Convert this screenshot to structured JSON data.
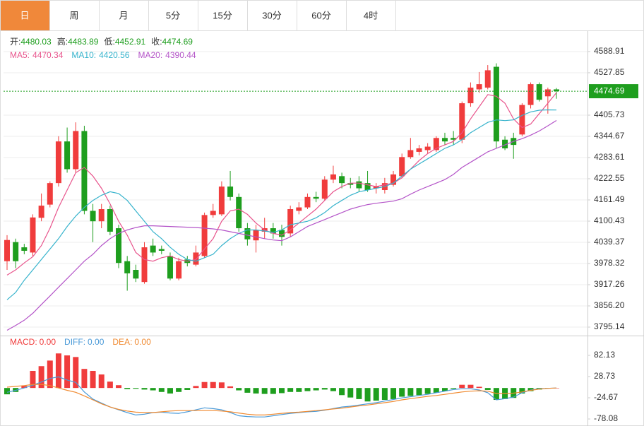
{
  "tabs": [
    "日",
    "周",
    "月",
    "5分",
    "15分",
    "30分",
    "60分",
    "4时"
  ],
  "active_tab": 0,
  "chart_data": [
    {
      "type": "candlestick",
      "up_color": "#f03c3c",
      "down_color": "#1e9e1e",
      "grid": true,
      "ohlc_labels": [
        "开:",
        "高:",
        "低:",
        "收:"
      ],
      "ohlc_value_color": "#1e9e1e",
      "ylim": [
        3770.75,
        4645.82
      ],
      "yticks": [
        4588.91,
        4527.85,
        4405.73,
        4344.67,
        4283.61,
        4222.55,
        4161.49,
        4100.43,
        4039.37,
        3978.32,
        3917.26,
        {
          "value": 3856.2,
          "label": "3856.20"
        },
        3795.14
      ],
      "open": [
        3985,
        4040,
        4025,
        4010,
        4110,
        4148,
        4210,
        4330,
        4250,
        4360,
        4130,
        4100,
        4135,
        4080,
        3985,
        3960,
        3925,
        4030,
        4020,
        4000,
        3935,
        3990,
        3975,
        4000,
        4118,
        4120,
        4200,
        4170,
        4080,
        4045,
        4070,
        4080,
        4075,
        4065,
        4130,
        4140,
        4170,
        4165,
        4220,
        4230,
        4210,
        4215,
        4210,
        4195,
        4190,
        4205,
        4230,
        4285,
        4300,
        4305,
        4305,
        4340,
        4340,
        4335,
        4440,
        4480,
        4485,
        4545,
        4335,
        4340,
        4350,
        4435,
        4495,
        4460,
        4480.03
      ],
      "high": [
        4060,
        4050,
        4035,
        4120,
        4180,
        4215,
        4345,
        4370,
        4385,
        4375,
        4150,
        4150,
        4145,
        4090,
        4000,
        3975,
        4040,
        4050,
        4030,
        4010,
        3995,
        4000,
        4030,
        4125,
        4150,
        4215,
        4245,
        4180,
        4095,
        4090,
        4110,
        4095,
        4090,
        4145,
        4155,
        4180,
        4185,
        4230,
        4260,
        4240,
        4225,
        4230,
        4245,
        4210,
        4225,
        4245,
        4295,
        4340,
        4320,
        4325,
        4345,
        4355,
        4360,
        4445,
        4500,
        4530,
        4550,
        4555,
        4345,
        4355,
        4440,
        4500,
        4500,
        4485,
        4483.89
      ],
      "low": [
        3960,
        3965,
        4005,
        4000,
        4100,
        4140,
        4200,
        4240,
        4240,
        4120,
        4040,
        4080,
        4060,
        3965,
        3900,
        3925,
        3920,
        4000,
        4005,
        3930,
        3930,
        3970,
        3970,
        3995,
        4110,
        4115,
        4160,
        4070,
        4030,
        4010,
        4050,
        4050,
        4030,
        4055,
        4120,
        4135,
        4155,
        4160,
        4210,
        4195,
        4195,
        4185,
        4185,
        4180,
        4180,
        4200,
        4225,
        4280,
        4290,
        4295,
        4300,
        4320,
        4320,
        4325,
        4430,
        4470,
        4480,
        4310,
        4305,
        4280,
        4345,
        4425,
        4445,
        4410,
        4452.91
      ],
      "close": [
        4046,
        3985,
        4015,
        4111,
        4145,
        4210,
        4330,
        4250,
        4360,
        4130,
        4100,
        4135,
        4070,
        3980,
        3950,
        3935,
        4025,
        4010,
        4015,
        3935,
        3985,
        3980,
        4010,
        4118,
        4130,
        4200,
        4170,
        4080,
        4048,
        4075,
        4080,
        4065,
        4055,
        4135,
        4140,
        4170,
        4165,
        4220,
        4235,
        4210,
        4205,
        4195,
        4190,
        4200,
        4210,
        4235,
        4285,
        4305,
        4310,
        4315,
        4340,
        4330,
        4335,
        4440,
        4485,
        4495,
        4535,
        4330,
        4310,
        4320,
        4435,
        4495,
        4450,
        4480,
        4474.69
      ],
      "series": [
        {
          "name": "MA5:",
          "color": "#e8548c",
          "values": [
            3945,
            3960,
            3980,
            3998,
            4030,
            4080,
            4140,
            4190,
            4240,
            4255,
            4230,
            4195,
            4150,
            4100,
            4060,
            4010,
            3990,
            3985,
            3995,
            4000,
            3990,
            3985,
            3990,
            4020,
            4050,
            4100,
            4130,
            4135,
            4120,
            4095,
            4075,
            4065,
            4060,
            4075,
            4095,
            4115,
            4135,
            4160,
            4185,
            4200,
            4210,
            4210,
            4205,
            4200,
            4205,
            4210,
            4225,
            4250,
            4275,
            4295,
            4310,
            4320,
            4330,
            4355,
            4395,
            4430,
            4465,
            4460,
            4440,
            4395,
            4370,
            4380,
            4410,
            4440,
            4470.34
          ]
        },
        {
          "name": "MA10:",
          "color": "#36b3cc",
          "values": [
            3874,
            3895,
            3930,
            3960,
            3990,
            4020,
            4050,
            4085,
            4115,
            4140,
            4160,
            4175,
            4185,
            4180,
            4160,
            4130,
            4100,
            4070,
            4050,
            4025,
            4005,
            3990,
            3985,
            3995,
            4005,
            4030,
            4050,
            4065,
            4075,
            4075,
            4072,
            4068,
            4075,
            4090,
            4095,
            4100,
            4110,
            4125,
            4145,
            4160,
            4175,
            4185,
            4190,
            4195,
            4200,
            4210,
            4230,
            4250,
            4265,
            4280,
            4295,
            4310,
            4320,
            4335,
            4355,
            4370,
            4385,
            4392,
            4390,
            4392,
            4405,
            4415,
            4420,
            4421,
            4420.56
          ]
        },
        {
          "name": "MA20:",
          "color": "#b454c8",
          "values": [
            3786,
            3800,
            3815,
            3835,
            3860,
            3885,
            3910,
            3935,
            3960,
            3985,
            4005,
            4030,
            4050,
            4065,
            4075,
            4082,
            4087,
            4087,
            4086,
            4085,
            4084,
            4083,
            4082,
            4080,
            4078,
            4075,
            4070,
            4065,
            4060,
            4055,
            4050,
            4046,
            4044,
            4055,
            4070,
            4085,
            4095,
            4105,
            4115,
            4125,
            4135,
            4142,
            4148,
            4152,
            4155,
            4158,
            4165,
            4178,
            4190,
            4200,
            4210,
            4220,
            4235,
            4255,
            4270,
            4285,
            4300,
            4310,
            4320,
            4330,
            4338,
            4348,
            4360,
            4375,
            4390.44
          ]
        }
      ]
    },
    {
      "type": "macd",
      "ylim": [
        -95.8,
        131.97
      ],
      "yticks": [
        82.13,
        28.73,
        -24.67,
        -78.08
      ],
      "series": [
        {
          "name": "MACD:",
          "type": "histogram",
          "color": "#f03c3c",
          "down_color": "#1e9e1e",
          "legend_value": "0.00",
          "values": [
            -16,
            -10,
            5,
            43,
            55,
            69,
            87,
            82,
            78,
            48,
            43,
            34,
            16,
            7,
            -3,
            -2,
            -4,
            -6,
            -10,
            -14,
            -10,
            -5,
            5,
            15,
            15,
            14,
            4,
            -6,
            -12,
            -14,
            -15,
            -15,
            -13,
            -10,
            -10,
            -8,
            -6,
            -4,
            -8,
            -18,
            -24,
            -28,
            -34,
            -32,
            -30,
            -28,
            -22,
            -20,
            -18,
            -15,
            -12,
            -8,
            -2,
            8,
            8,
            3,
            -5,
            -30,
            -28,
            -25,
            -14,
            -8,
            -4,
            -1,
            0
          ]
        },
        {
          "name": "DIFF:",
          "color": "#4a9ad8",
          "legend_value": "0.00",
          "values": [
            -11,
            -6,
            0,
            7,
            15,
            24,
            28,
            20,
            14,
            -10,
            -28,
            -38,
            -48,
            -55,
            -62,
            -68,
            -66,
            -62,
            -61,
            -63,
            -64,
            -60,
            -55,
            -50,
            -52,
            -55,
            -62,
            -70,
            -72,
            -73,
            -73,
            -70,
            -67,
            -64,
            -62,
            -60,
            -59,
            -56,
            -52,
            -48,
            -46,
            -43,
            -40,
            -37,
            -33,
            -29,
            -25,
            -22,
            -19,
            -16,
            -12,
            -8,
            -4,
            -2,
            -2,
            -5,
            -12,
            -30,
            -27,
            -23,
            -12,
            -5,
            -2,
            -1,
            0
          ]
        },
        {
          "name": "DEA:",
          "color": "#f08a30",
          "legend_value": "0.00",
          "values": [
            2,
            4,
            6,
            9,
            9,
            6,
            0,
            -6,
            -11,
            -20,
            -30,
            -40,
            -48,
            -54,
            -58,
            -61,
            -62,
            -62,
            -60,
            -58,
            -57,
            -57,
            -57,
            -57,
            -57,
            -58,
            -60,
            -63,
            -66,
            -68,
            -68,
            -66,
            -64,
            -62,
            -61,
            -59,
            -57,
            -55,
            -53,
            -51,
            -48,
            -45,
            -43,
            -40,
            -37,
            -34,
            -30,
            -27,
            -24,
            -21,
            -19,
            -16,
            -13,
            -10,
            -8,
            -7,
            -8,
            -14,
            -14,
            -13,
            -10,
            -6,
            -3,
            -1,
            0
          ]
        }
      ]
    }
  ]
}
